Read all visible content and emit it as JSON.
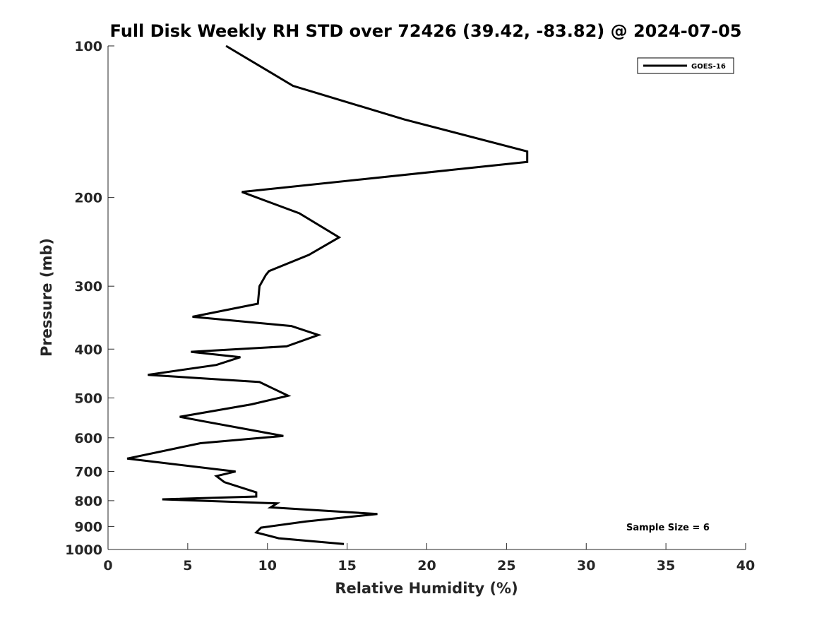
{
  "chart_data": {
    "type": "line",
    "title": "Full Disk Weekly RH STD over 72426 (39.42, -83.82) @ 2024-07-05",
    "xlabel": "Relative Humidity (%)",
    "ylabel": "Pressure (mb)",
    "xlim": [
      0,
      40
    ],
    "ylim": [
      1000,
      100
    ],
    "y_scale": "log",
    "y_reversed": true,
    "x_ticks": [
      0,
      5,
      10,
      15,
      20,
      25,
      30,
      35,
      40
    ],
    "y_ticks": [
      100,
      200,
      300,
      400,
      500,
      600,
      700,
      800,
      900,
      1000
    ],
    "grid": false,
    "legend_position": "top-right",
    "annotation": "Sample Size = 6",
    "line_color": "#000000",
    "series": [
      {
        "name": "GOES-16",
        "x": [
          14.8,
          10.7,
          9.3,
          9.6,
          12.4,
          16.9,
          10.2,
          10.6,
          3.4,
          9.3,
          9.3,
          7.3,
          6.8,
          8.0,
          1.2,
          5.8,
          11.0,
          5.8,
          4.5,
          9.0,
          11.3,
          9.5,
          2.5,
          6.8,
          8.3,
          5.2,
          11.2,
          13.2,
          11.5,
          5.3,
          9.4,
          9.5,
          9.9,
          10.1,
          12.6,
          14.5,
          12.0,
          8.4,
          26.3,
          26.3,
          18.6,
          11.6,
          7.4
        ],
        "y": [
          975,
          950,
          925,
          905,
          880,
          850,
          825,
          810,
          795,
          785,
          770,
          735,
          715,
          700,
          660,
          615,
          595,
          555,
          545,
          515,
          495,
          465,
          450,
          430,
          415,
          405,
          395,
          375,
          360,
          345,
          325,
          300,
          285,
          280,
          260,
          240,
          215,
          195,
          170,
          162,
          140,
          120,
          100
        ]
      }
    ]
  }
}
